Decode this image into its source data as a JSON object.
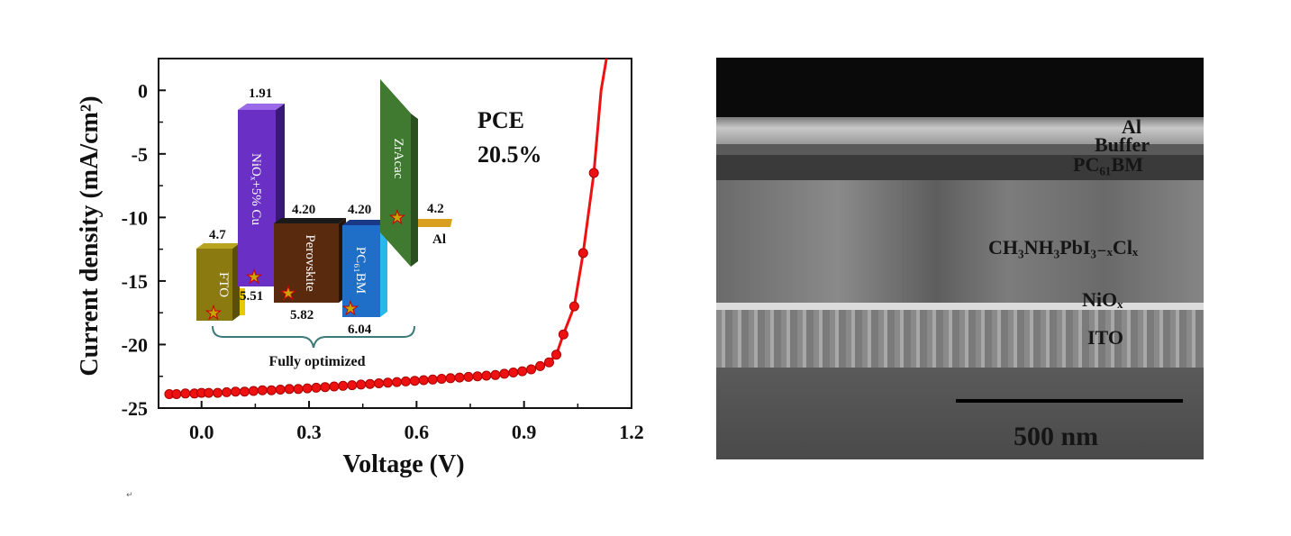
{
  "chart_data": {
    "type": "scatter",
    "x": [
      -0.09,
      -0.07,
      -0.045,
      -0.02,
      0.0,
      0.02,
      0.045,
      0.07,
      0.095,
      0.12,
      0.145,
      0.17,
      0.195,
      0.22,
      0.245,
      0.27,
      0.295,
      0.32,
      0.345,
      0.37,
      0.395,
      0.42,
      0.445,
      0.47,
      0.495,
      0.52,
      0.545,
      0.57,
      0.595,
      0.62,
      0.645,
      0.67,
      0.695,
      0.72,
      0.745,
      0.77,
      0.795,
      0.82,
      0.845,
      0.87,
      0.895,
      0.92,
      0.945,
      0.97,
      0.99,
      1.01,
      1.04,
      1.065,
      1.095
    ],
    "y": [
      -23.9,
      -23.9,
      -23.85,
      -23.85,
      -23.8,
      -23.8,
      -23.8,
      -23.75,
      -23.7,
      -23.7,
      -23.65,
      -23.6,
      -23.6,
      -23.55,
      -23.5,
      -23.5,
      -23.45,
      -23.4,
      -23.35,
      -23.3,
      -23.25,
      -23.2,
      -23.15,
      -23.1,
      -23.05,
      -23.0,
      -22.95,
      -22.9,
      -22.85,
      -22.8,
      -22.75,
      -22.7,
      -22.65,
      -22.6,
      -22.55,
      -22.5,
      -22.45,
      -22.4,
      -22.3,
      -22.2,
      -22.1,
      -21.95,
      -21.7,
      -21.4,
      -20.8,
      -19.2,
      -17.0,
      -12.8,
      -6.5
    ],
    "color": "#ee1111",
    "xlabel": "Voltage (V)",
    "ylabel": "Current density (mA/cm²)",
    "xlim": [
      -0.12,
      1.2
    ],
    "ylim": [
      -25,
      2.5
    ],
    "xticks": [
      "0.0",
      "0.3",
      "0.6",
      "0.9",
      "1.2"
    ],
    "xtick_values": [
      0.0,
      0.3,
      0.6,
      0.9,
      1.2
    ],
    "yticks": [
      "0",
      "-5",
      "-10",
      "-15",
      "-20",
      "-25"
    ],
    "ytick_values": [
      0,
      -5,
      -10,
      -15,
      -20,
      -25
    ],
    "annotation": [
      "PCE",
      "20.5%"
    ]
  },
  "inset": {
    "layers": [
      {
        "name": "FTO",
        "top_value": "4.7",
        "color": "#8a7a10"
      },
      {
        "name": "NiOₓ+5% Cu",
        "top_value": "1.91",
        "bottom_value": "5.51",
        "color": "#6a2fc4"
      },
      {
        "name": "Perovskite",
        "top_value": "4.20",
        "bottom_value": "5.82",
        "color": "#5a2a0e"
      },
      {
        "name": "PC₆₁BM",
        "top_value": "4.20",
        "bottom_value": "6.04",
        "color": "#1f6fc8"
      },
      {
        "name": "ZrAcac",
        "color": "#3f7a30"
      },
      {
        "name": "Al",
        "top_value": "4.2",
        "color": "#d9a020"
      }
    ],
    "brace_label": "Fully optimized"
  },
  "sem": {
    "labels": {
      "al": "Al",
      "buffer": "Buffer",
      "pcbm": "PC₆₁BM",
      "perovskite": "CH₃NH₃PbI₃₋ₓClₓ",
      "nio": "NiOₓ",
      "ito": "ITO"
    },
    "scale_label": "500 nm"
  },
  "footnote_mark": "↵"
}
